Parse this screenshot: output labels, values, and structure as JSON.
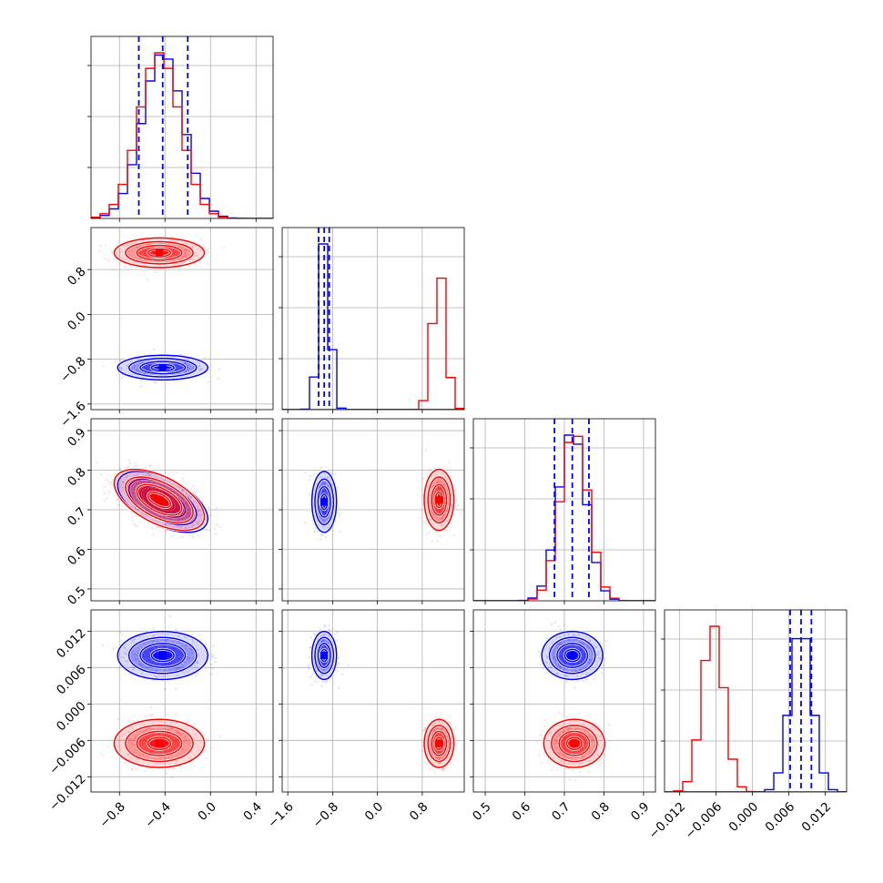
{
  "chart_data": {
    "type": "corner",
    "title": "",
    "grid": true,
    "parameter_labels": [
      "",
      "",
      "",
      ""
    ],
    "axis_ranges": [
      [
        -1.05,
        0.55
      ],
      [
        -1.7,
        1.55
      ],
      [
        0.47,
        0.93
      ],
      [
        -0.0145,
        0.0155
      ]
    ],
    "axis_ticks": [
      {
        "values": [
          -0.8,
          -0.4,
          0.0,
          0.4
        ],
        "labels": [
          "−0.8",
          "−0.4",
          "0.0",
          "0.4"
        ]
      },
      {
        "values": [
          -1.6,
          -0.8,
          0.0,
          0.8
        ],
        "labels": [
          "−1.6",
          "−0.8",
          "0.0",
          "0.8"
        ]
      },
      {
        "values": [
          0.5,
          0.6,
          0.7,
          0.8,
          0.9
        ],
        "labels": [
          "0.5",
          "0.6",
          "0.7",
          "0.8",
          "0.9"
        ]
      },
      {
        "values": [
          -0.012,
          -0.006,
          0.0,
          0.006,
          0.012
        ],
        "labels": [
          "−0.012",
          "−0.006",
          "0.000",
          "0.006",
          "0.012"
        ]
      }
    ],
    "series": [
      {
        "color": "#0000ff",
        "means": [
          -0.42,
          -0.95,
          0.72,
          0.008
        ],
        "sigmas": [
          0.18,
          0.1,
          0.035,
          0.0018
        ],
        "correlations": [
          [
            0,
            2,
            -0.55
          ]
        ],
        "quantile_lines": [
          [
            -0.63,
            -0.42,
            -0.2
          ],
          [
            -1.05,
            -0.95,
            -0.86
          ],
          [
            0.675,
            0.72,
            0.762
          ],
          [
            0.0062,
            0.008,
            0.0097
          ]
        ]
      },
      {
        "color": "#ff0000",
        "means": [
          -0.45,
          1.1,
          0.725,
          -0.0065
        ],
        "sigmas": [
          0.18,
          0.12,
          0.035,
          0.0018
        ],
        "correlations": [
          [
            0,
            2,
            -0.55
          ]
        ]
      }
    ]
  }
}
